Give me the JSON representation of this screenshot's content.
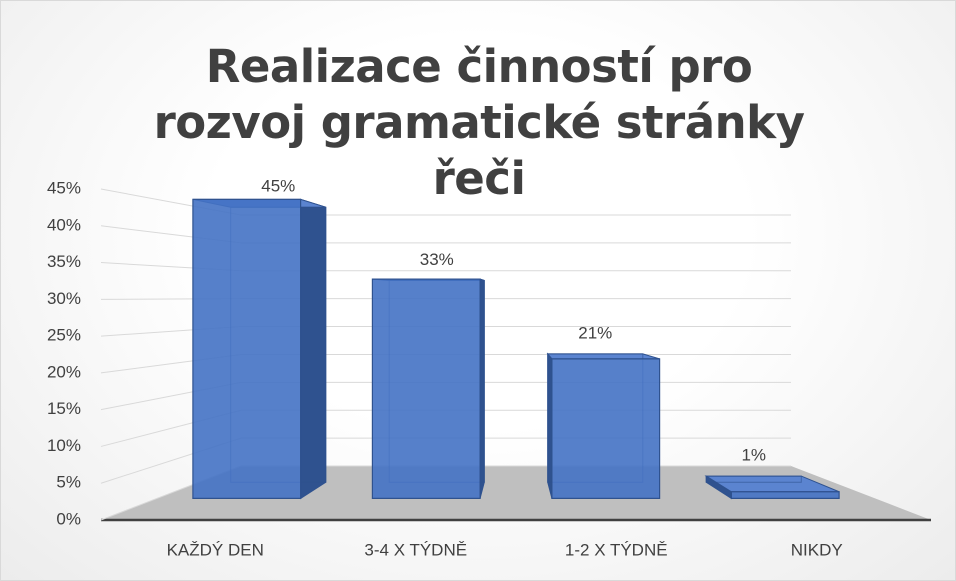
{
  "chart_data": {
    "type": "bar3d",
    "title": "Realizace činností pro rozvoj gramatické stránky řeči",
    "categories": [
      "KAŽDÝ DEN",
      "3-4 X TÝDNĚ",
      "1-2 X TÝDNĚ",
      "NIKDY"
    ],
    "values": [
      45,
      33,
      21,
      1
    ],
    "value_labels": [
      "45%",
      "33%",
      "21%",
      "1%"
    ],
    "color": "#4472c4",
    "ylim": [
      0,
      45
    ],
    "yticks": [
      {
        "value": 0,
        "label": "0%"
      },
      {
        "value": 5,
        "label": "5%"
      },
      {
        "value": 10,
        "label": "10%"
      },
      {
        "value": 15,
        "label": "15%"
      },
      {
        "value": 20,
        "label": "20%"
      },
      {
        "value": 25,
        "label": "25%"
      },
      {
        "value": 30,
        "label": "30%"
      },
      {
        "value": 35,
        "label": "35%"
      },
      {
        "value": 40,
        "label": "40%"
      },
      {
        "value": 45,
        "label": "45%"
      }
    ],
    "grid": true
  }
}
